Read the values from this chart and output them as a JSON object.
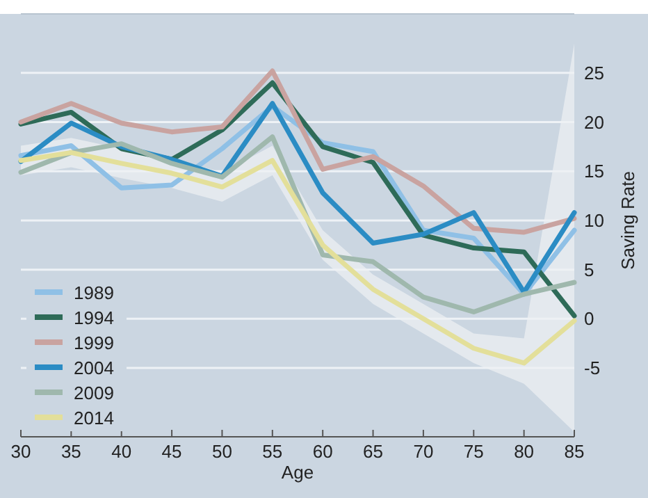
{
  "chart_data": {
    "type": "line",
    "xlabel": "Age",
    "ylabel": "Saving Rate",
    "x": [
      30,
      35,
      40,
      45,
      50,
      55,
      60,
      65,
      70,
      75,
      80,
      85
    ],
    "xlim": [
      30,
      85
    ],
    "xticks": [
      30,
      35,
      40,
      45,
      50,
      55,
      60,
      65,
      70,
      75,
      80,
      85
    ],
    "ylim": [
      -12,
      31
    ],
    "yticks": [
      -5,
      0,
      5,
      10,
      15,
      20,
      25
    ],
    "grid": "y",
    "legend": "bottom left",
    "line_style": "solid",
    "marker": "none",
    "series": [
      {
        "name": "1989",
        "color": "#8fc0e6",
        "values": [
          16.6,
          17.6,
          13.3,
          13.6,
          17.3,
          21.6,
          17.9,
          17,
          9,
          8.2,
          2.5,
          9
        ]
      },
      {
        "name": "1994",
        "color": "#2e6b58",
        "values": [
          19.8,
          21,
          17.3,
          16.2,
          19.2,
          24,
          17.5,
          15.9,
          8.5,
          7.2,
          6.8,
          0.3
        ]
      },
      {
        "name": "1999",
        "color": "#c9a3a0",
        "values": [
          20,
          21.9,
          19.9,
          19,
          19.5,
          25.2,
          15.2,
          16.5,
          13.5,
          9.2,
          8.8,
          10.2
        ]
      },
      {
        "name": "2004",
        "color": "#2b8cc4",
        "values": [
          16,
          19.9,
          17.5,
          16.2,
          14.5,
          21.9,
          12.8,
          7.7,
          8.6,
          10.8,
          2.7,
          10.8
        ]
      },
      {
        "name": "2009",
        "color": "#9fb8ad",
        "values": [
          14.9,
          16.9,
          17.8,
          15.8,
          14.4,
          18.5,
          6.5,
          5.8,
          2.2,
          0.7,
          2.5,
          3.7
        ]
      },
      {
        "name": "2014",
        "color": "#e3df9a",
        "values": [
          16.1,
          16.9,
          15.8,
          14.8,
          13.4,
          16.1,
          7.5,
          3,
          0,
          -3,
          -4.5,
          -0.2
        ],
        "lower": [
          14.6,
          15.4,
          14.3,
          13.3,
          11.9,
          14.6,
          6,
          1.5,
          -1.5,
          -4.5,
          -6.6,
          -11.5
        ],
        "upper": [
          17.6,
          18.4,
          17.3,
          16.3,
          14.9,
          17.6,
          9,
          4.5,
          1.5,
          -1.5,
          -2,
          28
        ]
      }
    ]
  }
}
